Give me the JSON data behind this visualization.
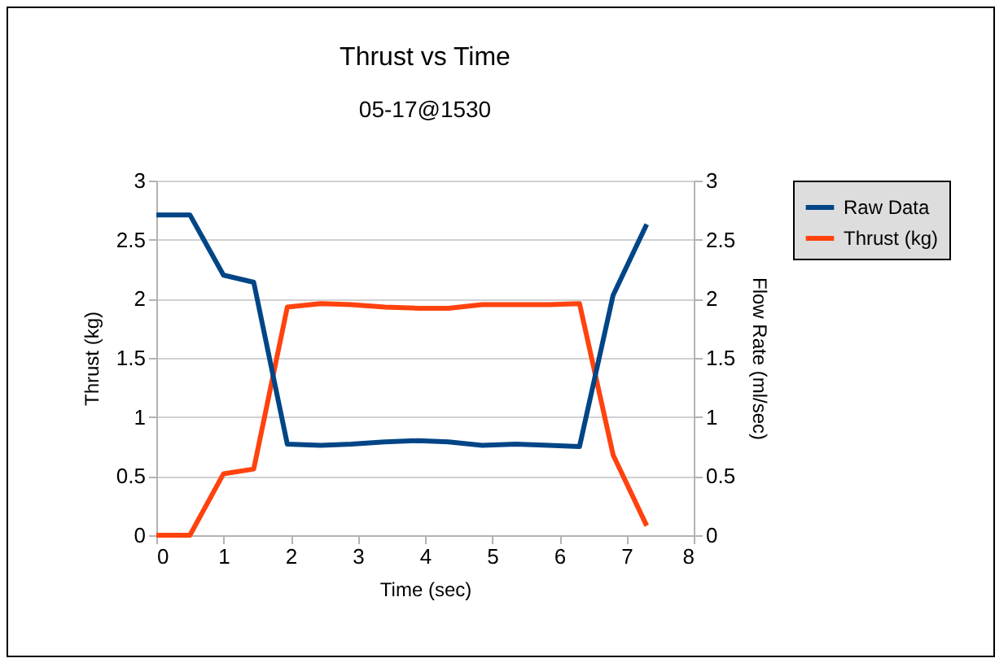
{
  "chart_data": {
    "type": "line",
    "title": "Thrust vs Time",
    "subtitle": "05-17@1530",
    "xlabel": "Time (sec)",
    "ylabel": "Thrust (kg)",
    "y2label": "Flow Rate (ml/sec)",
    "x": [
      0,
      0.5,
      1,
      1.45,
      1.95,
      2.45,
      2.9,
      3.4,
      3.9,
      4.35,
      4.85,
      5.35,
      5.85,
      6.3,
      6.8,
      7.3
    ],
    "series": [
      {
        "name": "Raw Data",
        "color": "#004586",
        "axis": "y2",
        "values": [
          2.71,
          2.71,
          2.2,
          2.14,
          0.77,
          0.76,
          0.77,
          0.79,
          0.8,
          0.79,
          0.76,
          0.77,
          0.76,
          0.75,
          2.03,
          2.63
        ]
      },
      {
        "name": "Thrust (kg)",
        "color": "#ff420e",
        "values": [
          0,
          0,
          0.52,
          0.56,
          1.93,
          1.96,
          1.95,
          1.93,
          1.92,
          1.92,
          1.95,
          1.95,
          1.95,
          1.96,
          0.68,
          0.08
        ]
      }
    ],
    "xlim": [
      0,
      8
    ],
    "xticks": [
      0,
      1,
      2,
      3,
      4,
      5,
      6,
      7,
      8
    ],
    "ylim": [
      0,
      3
    ],
    "yticks": [
      0,
      0.5,
      1,
      1.5,
      2,
      2.5,
      3
    ],
    "y2lim": [
      0,
      3
    ],
    "y2ticks": [
      0,
      0.5,
      1,
      1.5,
      2,
      2.5,
      3
    ],
    "grid": "y",
    "legend": "right",
    "marker": "none",
    "line_style": "solid"
  }
}
